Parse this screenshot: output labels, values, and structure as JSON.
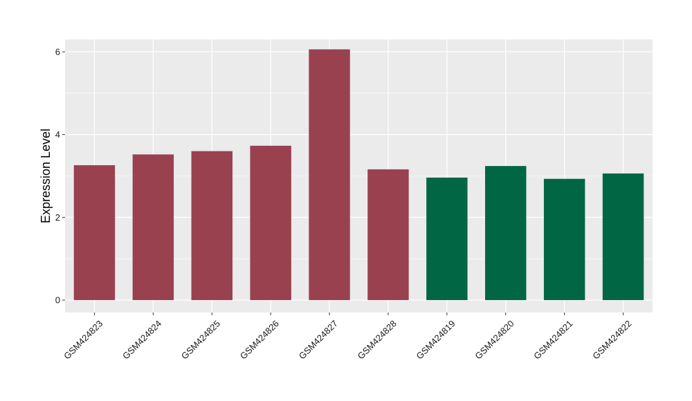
{
  "chart_data": {
    "type": "bar",
    "title": "",
    "xlabel": "",
    "ylabel": "Expression Level",
    "categories": [
      "GSM424823",
      "GSM424824",
      "GSM424825",
      "GSM424826",
      "GSM424827",
      "GSM424828",
      "GSM424819",
      "GSM424820",
      "GSM424821",
      "GSM424822"
    ],
    "values": [
      3.26,
      3.52,
      3.6,
      3.73,
      6.06,
      3.16,
      2.96,
      3.24,
      2.93,
      3.06
    ],
    "bar_groups": [
      "red",
      "red",
      "red",
      "red",
      "red",
      "red",
      "green",
      "green",
      "green",
      "green"
    ],
    "group_colors": {
      "red": "#9a4150",
      "green": "#006644"
    },
    "ylim": [
      -0.3,
      6.3
    ],
    "yticks": [
      0,
      2,
      4,
      6
    ],
    "grid": true,
    "panel_background": "#ebebeb",
    "grid_color": "#ffffff"
  }
}
